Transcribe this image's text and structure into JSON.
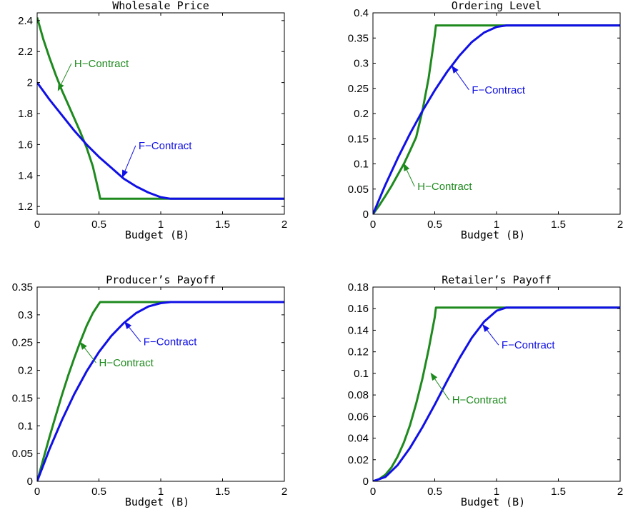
{
  "colors": {
    "H": "#1e8a1e",
    "F": "#1010e6",
    "axes": "#000000"
  },
  "chart_data": [
    {
      "type": "line",
      "title": "Wholesale Price",
      "xlabel": "Budget (B)",
      "ylabel": "",
      "xlim": [
        0,
        2
      ],
      "ylim": [
        1.15,
        2.45
      ],
      "xticks": [
        0,
        0.5,
        1,
        1.5,
        2
      ],
      "xtick_labels": [
        "0",
        "0.5",
        "1",
        "1.5",
        "2"
      ],
      "yticks": [
        1.2,
        1.4,
        1.6,
        1.8,
        2.0,
        2.2,
        2.4
      ],
      "ytick_labels": [
        "1.2",
        "1.4",
        "1.6",
        "1.8",
        "2",
        "2.2",
        "2.4"
      ],
      "grid": false,
      "series": [
        {
          "name": "H-Contract",
          "color": "#1e8a1e",
          "x": [
            0,
            0.05,
            0.1,
            0.15,
            0.2,
            0.25,
            0.3,
            0.35,
            0.4,
            0.45,
            0.5,
            0.51,
            0.6,
            0.8,
            1.0,
            1.2,
            1.5,
            2.0
          ],
          "y": [
            2.42,
            2.28,
            2.16,
            2.05,
            1.95,
            1.86,
            1.77,
            1.68,
            1.58,
            1.46,
            1.29,
            1.25,
            1.25,
            1.25,
            1.25,
            1.25,
            1.25,
            1.25
          ]
        },
        {
          "name": "F-Contract",
          "color": "#1010e6",
          "x": [
            0,
            0.1,
            0.2,
            0.3,
            0.4,
            0.5,
            0.6,
            0.7,
            0.8,
            0.9,
            1.0,
            1.08,
            1.3,
            1.6,
            2.0
          ],
          "y": [
            2.0,
            1.89,
            1.79,
            1.69,
            1.6,
            1.52,
            1.45,
            1.38,
            1.33,
            1.29,
            1.26,
            1.25,
            1.25,
            1.25,
            1.25
          ]
        }
      ],
      "annotations": [
        {
          "text": "H−Contract",
          "series": "H",
          "arrow_to": [
            0.17,
            1.95
          ],
          "text_at": [
            0.3,
            2.1
          ]
        },
        {
          "text": "F−Contract",
          "series": "F",
          "arrow_to": [
            0.69,
            1.39
          ],
          "text_at": [
            0.82,
            1.57
          ]
        }
      ]
    },
    {
      "type": "line",
      "title": "Ordering Level",
      "xlabel": "Budget (B)",
      "ylabel": "",
      "xlim": [
        0,
        2
      ],
      "ylim": [
        0,
        0.4
      ],
      "xticks": [
        0,
        0.5,
        1,
        1.5,
        2
      ],
      "xtick_labels": [
        "0",
        "0.5",
        "1",
        "1.5",
        "2"
      ],
      "yticks": [
        0,
        0.05,
        0.1,
        0.15,
        0.2,
        0.25,
        0.3,
        0.35,
        0.4
      ],
      "ytick_labels": [
        "0",
        "0.05",
        "0.1",
        "0.15",
        "0.2",
        "0.25",
        "0.3",
        "0.35",
        "0.4"
      ],
      "grid": false,
      "series": [
        {
          "name": "H-Contract",
          "color": "#1e8a1e",
          "x": [
            0,
            0.05,
            0.1,
            0.15,
            0.2,
            0.25,
            0.3,
            0.35,
            0.4,
            0.45,
            0.5,
            0.51,
            0.8,
            1.2,
            2.0
          ],
          "y": [
            0,
            0.017,
            0.036,
            0.056,
            0.078,
            0.1,
            0.126,
            0.153,
            0.205,
            0.27,
            0.355,
            0.375,
            0.375,
            0.375,
            0.375
          ]
        },
        {
          "name": "F-Contract",
          "color": "#1010e6",
          "x": [
            0,
            0.1,
            0.2,
            0.3,
            0.4,
            0.5,
            0.6,
            0.7,
            0.8,
            0.9,
            1.0,
            1.08,
            1.4,
            2.0
          ],
          "y": [
            0,
            0.058,
            0.111,
            0.16,
            0.205,
            0.246,
            0.283,
            0.315,
            0.342,
            0.361,
            0.372,
            0.375,
            0.375,
            0.375
          ]
        }
      ],
      "annotations": [
        {
          "text": "F−Contract",
          "series": "F",
          "arrow_to": [
            0.64,
            0.294
          ],
          "text_at": [
            0.8,
            0.24
          ]
        },
        {
          "text": "H−Contract",
          "series": "H",
          "arrow_to": [
            0.25,
            0.1
          ],
          "text_at": [
            0.36,
            0.048
          ]
        }
      ]
    },
    {
      "type": "line",
      "title": "Producer’s Payoff",
      "xlabel": "Budget (B)",
      "ylabel": "",
      "xlim": [
        0,
        2
      ],
      "ylim": [
        0,
        0.35
      ],
      "xticks": [
        0,
        0.5,
        1,
        1.5,
        2
      ],
      "xtick_labels": [
        "0",
        "0.5",
        "1",
        "1.5",
        "2"
      ],
      "yticks": [
        0,
        0.05,
        0.1,
        0.15,
        0.2,
        0.25,
        0.3,
        0.35
      ],
      "ytick_labels": [
        "0",
        "0.05",
        "0.1",
        "0.15",
        "0.2",
        "0.25",
        "0.3",
        "0.35"
      ],
      "grid": false,
      "series": [
        {
          "name": "H-Contract",
          "color": "#1e8a1e",
          "x": [
            0,
            0.05,
            0.1,
            0.15,
            0.2,
            0.25,
            0.3,
            0.35,
            0.4,
            0.45,
            0.5,
            0.51,
            0.8,
            1.2,
            2.0
          ],
          "y": [
            0,
            0.04,
            0.08,
            0.118,
            0.155,
            0.19,
            0.222,
            0.252,
            0.28,
            0.303,
            0.32,
            0.323,
            0.323,
            0.323,
            0.323
          ]
        },
        {
          "name": "F-Contract",
          "color": "#1010e6",
          "x": [
            0,
            0.1,
            0.2,
            0.3,
            0.4,
            0.5,
            0.6,
            0.7,
            0.8,
            0.9,
            1.0,
            1.08,
            1.4,
            2.0
          ],
          "y": [
            0,
            0.058,
            0.11,
            0.157,
            0.198,
            0.233,
            0.262,
            0.285,
            0.303,
            0.315,
            0.321,
            0.323,
            0.323,
            0.323
          ]
        }
      ],
      "annotations": [
        {
          "text": "F−Contract",
          "series": "F",
          "arrow_to": [
            0.71,
            0.287
          ],
          "text_at": [
            0.86,
            0.245
          ]
        },
        {
          "text": "H−Contract",
          "series": "H",
          "arrow_to": [
            0.35,
            0.25
          ],
          "text_at": [
            0.5,
            0.207
          ]
        }
      ]
    },
    {
      "type": "line",
      "title": "Retailer’s Payoff",
      "xlabel": "Budget (B)",
      "ylabel": "",
      "xlim": [
        0,
        2
      ],
      "ylim": [
        0,
        0.18
      ],
      "xticks": [
        0,
        0.5,
        1,
        1.5,
        2
      ],
      "xtick_labels": [
        "0",
        "0.5",
        "1",
        "1.5",
        "2"
      ],
      "yticks": [
        0,
        0.02,
        0.04,
        0.06,
        0.08,
        0.1,
        0.12,
        0.14,
        0.16,
        0.18
      ],
      "ytick_labels": [
        "0",
        "0.02",
        "0.04",
        "0.06",
        "0.08",
        "0.1",
        "0.12",
        "0.14",
        "0.16",
        "0.18"
      ],
      "grid": false,
      "series": [
        {
          "name": "H-Contract",
          "color": "#1e8a1e",
          "x": [
            0,
            0.05,
            0.1,
            0.15,
            0.2,
            0.25,
            0.3,
            0.35,
            0.4,
            0.45,
            0.5,
            0.51,
            0.8,
            1.2,
            2.0
          ],
          "y": [
            0,
            0.002,
            0.006,
            0.013,
            0.023,
            0.036,
            0.052,
            0.072,
            0.095,
            0.122,
            0.152,
            0.161,
            0.161,
            0.161,
            0.161
          ]
        },
        {
          "name": "F-Contract",
          "color": "#1010e6",
          "x": [
            0,
            0.1,
            0.2,
            0.3,
            0.4,
            0.5,
            0.6,
            0.7,
            0.8,
            0.9,
            1.0,
            1.08,
            1.4,
            2.0
          ],
          "y": [
            0,
            0.004,
            0.015,
            0.031,
            0.05,
            0.071,
            0.093,
            0.114,
            0.133,
            0.148,
            0.158,
            0.161,
            0.161,
            0.161
          ]
        }
      ],
      "annotations": [
        {
          "text": "F−Contract",
          "series": "F",
          "arrow_to": [
            0.89,
            0.145
          ],
          "text_at": [
            1.04,
            0.123
          ]
        },
        {
          "text": "H−Contract",
          "series": "H",
          "arrow_to": [
            0.47,
            0.1
          ],
          "text_at": [
            0.64,
            0.072
          ]
        }
      ]
    }
  ]
}
